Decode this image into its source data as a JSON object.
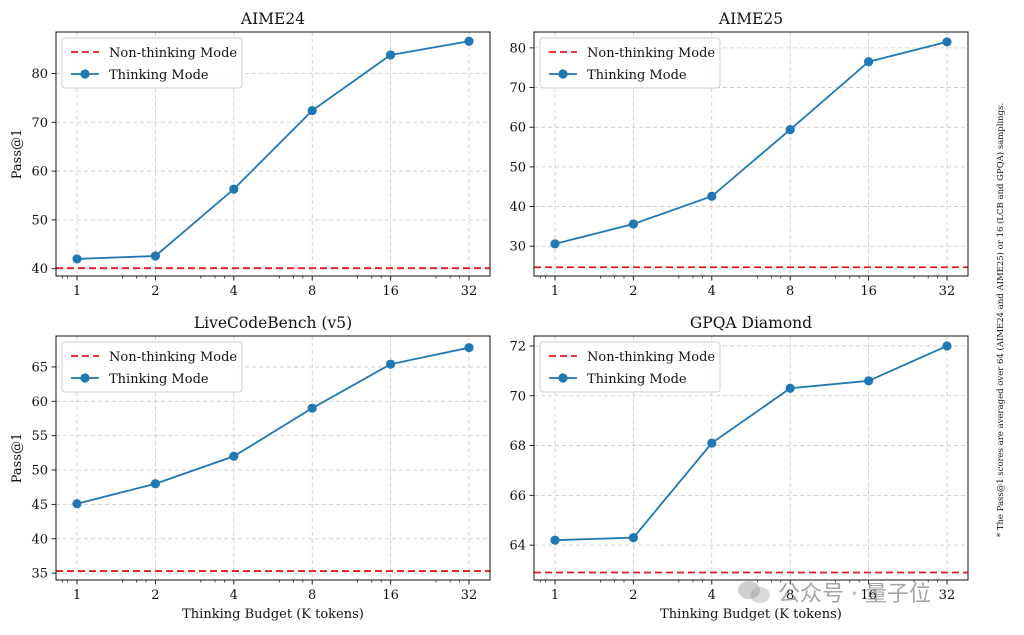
{
  "footnote": "* The Pass@1 scores are averaged over 64 (AIME24 and AIME25) or 16 (LCB and GPQA) samplings.",
  "watermark": {
    "text": "公众号 · 量子位",
    "icon": "wechat-icon"
  },
  "colors": {
    "thinking": "#1f77b4",
    "non_thinking": "#e31a1c",
    "grid": "#c8c8c8"
  },
  "chart_data": [
    {
      "type": "line",
      "title": "AIME24",
      "xlabel": "",
      "ylabel": "Pass@1",
      "categories": [
        "1",
        "2",
        "4",
        "8",
        "16",
        "32"
      ],
      "ylim": [
        38.5,
        88.5
      ],
      "yticks": [
        40,
        50,
        60,
        70,
        80
      ],
      "grid": true,
      "legend": "top-left",
      "series": [
        {
          "name": "Non-thinking Mode",
          "style": "dashed",
          "constant": 40.1
        },
        {
          "name": "Thinking Mode",
          "style": "line-marker",
          "values": [
            42.0,
            42.6,
            56.3,
            72.4,
            83.8,
            86.6
          ]
        }
      ]
    },
    {
      "type": "line",
      "title": "AIME25",
      "xlabel": "",
      "ylabel": "",
      "categories": [
        "1",
        "2",
        "4",
        "8",
        "16",
        "32"
      ],
      "ylim": [
        22.5,
        84.0
      ],
      "yticks": [
        30,
        40,
        50,
        60,
        70,
        80
      ],
      "grid": true,
      "legend": "top-left",
      "series": [
        {
          "name": "Non-thinking Mode",
          "style": "dashed",
          "constant": 24.7
        },
        {
          "name": "Thinking Mode",
          "style": "line-marker",
          "values": [
            30.6,
            35.6,
            42.6,
            59.4,
            76.5,
            81.5
          ]
        }
      ]
    },
    {
      "type": "line",
      "title": "LiveCodeBench (v5)",
      "xlabel": "Thinking Budget (K tokens)",
      "ylabel": "Pass@1",
      "categories": [
        "1",
        "2",
        "4",
        "8",
        "16",
        "32"
      ],
      "ylim": [
        34.0,
        69.5
      ],
      "yticks": [
        35,
        40,
        45,
        50,
        55,
        60,
        65
      ],
      "grid": true,
      "legend": "top-left",
      "series": [
        {
          "name": "Non-thinking Mode",
          "style": "dashed",
          "constant": 35.3
        },
        {
          "name": "Thinking Mode",
          "style": "line-marker",
          "values": [
            45.1,
            48.0,
            52.0,
            59.0,
            65.4,
            67.8
          ]
        }
      ]
    },
    {
      "type": "line",
      "title": "GPQA Diamond",
      "xlabel": "Thinking Budget (K tokens)",
      "ylabel": "",
      "categories": [
        "1",
        "2",
        "4",
        "8",
        "16",
        "32"
      ],
      "ylim": [
        62.6,
        72.4
      ],
      "yticks": [
        64,
        66,
        68,
        70,
        72
      ],
      "grid": true,
      "legend": "top-left",
      "series": [
        {
          "name": "Non-thinking Mode",
          "style": "dashed",
          "constant": 62.9
        },
        {
          "name": "Thinking Mode",
          "style": "line-marker",
          "values": [
            64.2,
            64.3,
            68.1,
            70.3,
            70.6,
            72.0
          ]
        }
      ]
    }
  ]
}
